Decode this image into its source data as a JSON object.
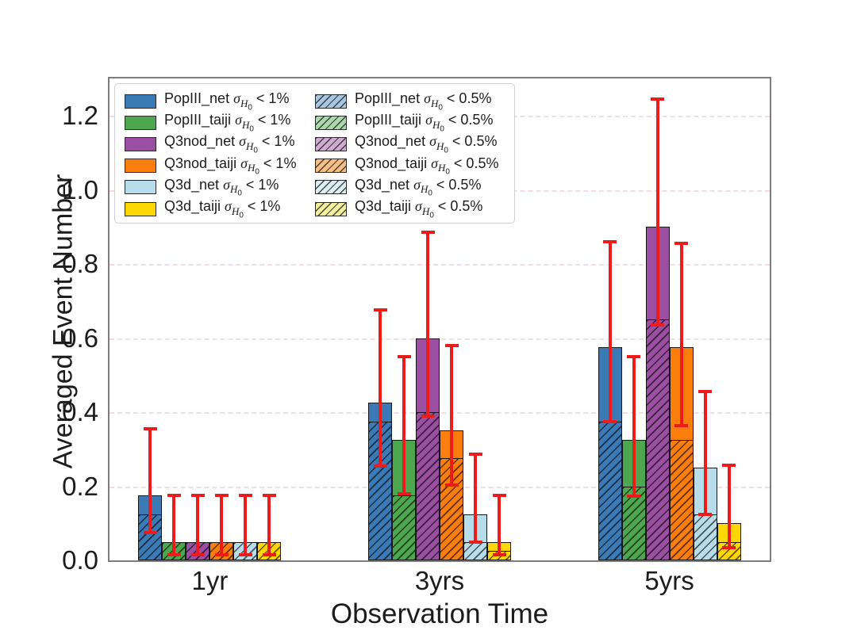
{
  "axes": {
    "ylabel": "Averaged Event Number",
    "xlabel": "Observation Time",
    "ytick_labels": [
      "0.0",
      "0.2",
      "0.4",
      "0.6",
      "0.8",
      "1.0",
      "1.2"
    ],
    "ytick_values": [
      0.0,
      0.2,
      0.4,
      0.6,
      0.8,
      1.0,
      1.2
    ],
    "xtick_labels": [
      "1yr",
      "3yrs",
      "5yrs"
    ]
  },
  "legend": {
    "sigma": "σ",
    "sub_h": "H",
    "sub_zero": "0",
    "solid_suffix": "< 1%",
    "hatched_suffix": "< 0.5%"
  },
  "colors": {
    "errorbar_red": "#ee1b1b",
    "bar_edge": "#161616",
    "spine_gray": "#7d7d7d"
  },
  "chart_data": {
    "type": "bar",
    "title": "",
    "xlabel": "Observation Time",
    "ylabel": "Averaged Event Number",
    "categories": [
      "1yr",
      "3yrs",
      "5yrs"
    ],
    "ylim": [
      0,
      1.3
    ],
    "grid": "horizontal-dashed",
    "legend_position": "upper-left",
    "group_center_fractions": [
      0.152,
      0.5,
      0.848
    ],
    "series": [
      {
        "label": "PopIII_net",
        "color": "#3c7ab6",
        "legend_light": "#a9c6e1",
        "solid_name": "PopIII_net σH0 < 1%",
        "hatched_name": "PopIII_net σH0 < 0.5%",
        "solid_values": [
          0.175,
          0.425,
          0.575
        ],
        "hatched_values": [
          0.125,
          0.375,
          0.375
        ],
        "err_low": [
          0.07,
          0.25,
          0.37
        ],
        "err_high": [
          0.36,
          0.68,
          0.865
        ]
      },
      {
        "label": "PopIII_taiji",
        "color": "#4ea64f",
        "legend_light": "#abd8ab",
        "solid_name": "PopIII_taiji σH0 < 1%",
        "hatched_name": "PopIII_taiji σH0 < 0.5%",
        "solid_values": [
          0.05,
          0.325,
          0.325
        ],
        "hatched_values": [
          0.05,
          0.175,
          0.2
        ],
        "err_low": [
          0.01,
          0.175,
          0.17
        ],
        "err_high": [
          0.18,
          0.555,
          0.555
        ]
      },
      {
        "label": "Q3nod_net",
        "color": "#9b4fa0",
        "legend_light": "#cfaad2",
        "solid_name": "Q3nod_net σH0 < 1%",
        "hatched_name": "Q3nod_net σH0 < 0.5%",
        "solid_values": [
          0.05,
          0.6,
          0.9
        ],
        "hatched_values": [
          0.05,
          0.4,
          0.65
        ],
        "err_low": [
          0.01,
          0.385,
          0.63
        ],
        "err_high": [
          0.18,
          0.89,
          1.25
        ]
      },
      {
        "label": "Q3nod_taiji",
        "color": "#f97e0e",
        "legend_light": "#f6bd85",
        "solid_name": "Q3nod_taiji σH0 < 1%",
        "hatched_name": "Q3nod_taiji σH0 < 0.5%",
        "solid_values": [
          0.05,
          0.35,
          0.575
        ],
        "hatched_values": [
          0.05,
          0.275,
          0.325
        ],
        "err_low": [
          0.01,
          0.2,
          0.36
        ],
        "err_high": [
          0.18,
          0.585,
          0.86
        ]
      },
      {
        "label": "Q3d_net",
        "color": "#b7dcea",
        "legend_light": "#dcedf3",
        "solid_name": "Q3d_net σH0 < 1%",
        "hatched_name": "Q3d_net σH0 < 0.5%",
        "solid_values": [
          0.05,
          0.125,
          0.25
        ],
        "hatched_values": [
          0.05,
          0.05,
          0.125
        ],
        "err_low": [
          0.01,
          0.045,
          0.12
        ],
        "err_high": [
          0.18,
          0.29,
          0.46
        ]
      },
      {
        "label": "Q3d_taiji",
        "color": "#ffd700",
        "legend_light": "#f4ef9f",
        "solid_name": "Q3d_taiji σH0 < 1%",
        "hatched_name": "Q3d_taiji σH0 < 0.5%",
        "solid_values": [
          0.05,
          0.05,
          0.1
        ],
        "hatched_values": [
          0.05,
          0.025,
          0.05
        ],
        "err_low": [
          0.01,
          0.01,
          0.03
        ],
        "err_high": [
          0.18,
          0.18,
          0.26
        ]
      }
    ]
  }
}
